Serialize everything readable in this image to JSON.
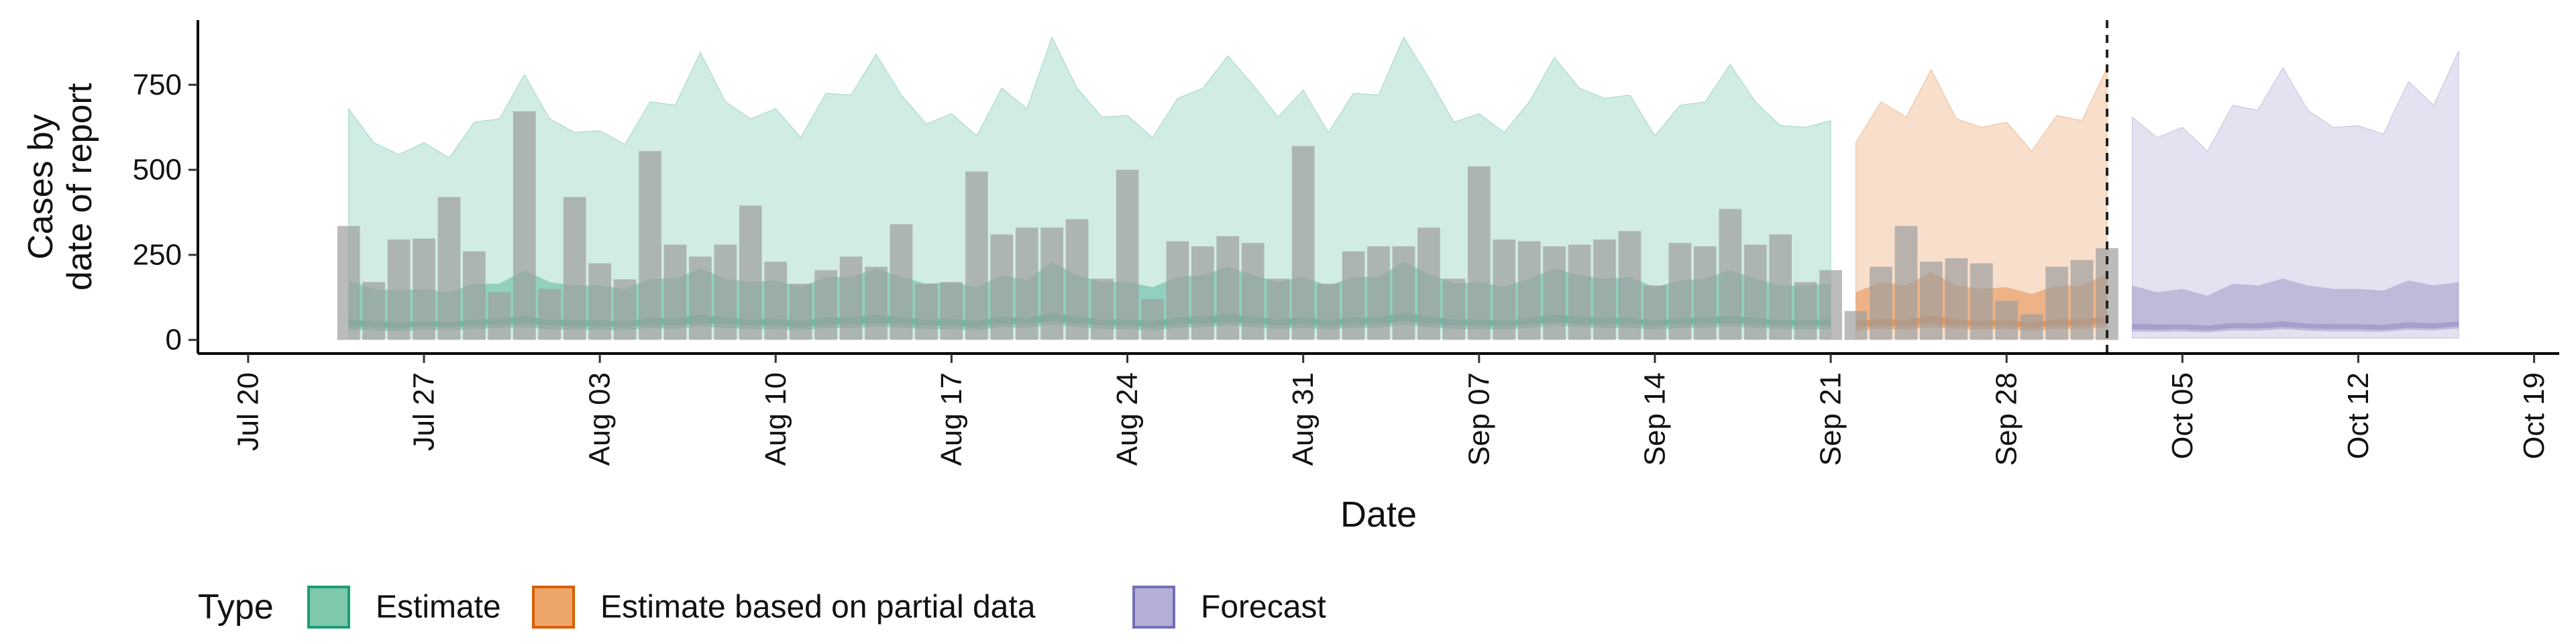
{
  "chart_data": {
    "type": "bar+area",
    "ylabel": "Cases by\ndate of report",
    "xlabel": "Date",
    "yticks": [
      0,
      250,
      500,
      750
    ],
    "ylim": [
      -40,
      940
    ],
    "xlim": [
      "2020-07-18",
      "2020-10-20"
    ],
    "xticks": [
      "2020-07-20",
      "2020-07-27",
      "2020-08-03",
      "2020-08-10",
      "2020-08-17",
      "2020-08-24",
      "2020-08-31",
      "2020-09-07",
      "2020-09-14",
      "2020-09-21",
      "2020-09-28",
      "2020-10-05",
      "2020-10-12",
      "2020-10-19"
    ],
    "xtick_labels": [
      "Jul 20",
      "Jul 27",
      "Aug 03",
      "Aug 10",
      "Aug 17",
      "Aug 24",
      "Aug 31",
      "Sep 07",
      "Sep 14",
      "Sep 21",
      "Sep 28",
      "Oct 05",
      "Oct 12",
      "Oct 19"
    ],
    "vline_date": "2020-10-02",
    "legend": {
      "title": "Type",
      "position": "bottom",
      "items": [
        {
          "label": "Estimate",
          "fill": "#7fc8ab",
          "stroke": "#1b9e77"
        },
        {
          "label": "Estimate based on partial data",
          "fill": "#eda66a",
          "stroke": "#d95f02"
        },
        {
          "label": "Forecast",
          "fill": "#b4afd6",
          "stroke": "#7570b3"
        }
      ]
    },
    "colors": {
      "Estimate": "#1b9e77",
      "Estimate based on partial data": "#d95f02",
      "Forecast": "#7570b3",
      "bars": "#9e9e9e"
    },
    "bars": {
      "dates": [
        "2020-07-24",
        "2020-07-25",
        "2020-07-26",
        "2020-07-27",
        "2020-07-28",
        "2020-07-29",
        "2020-07-30",
        "2020-07-31",
        "2020-08-01",
        "2020-08-02",
        "2020-08-03",
        "2020-08-04",
        "2020-08-05",
        "2020-08-06",
        "2020-08-07",
        "2020-08-08",
        "2020-08-09",
        "2020-08-10",
        "2020-08-11",
        "2020-08-12",
        "2020-08-13",
        "2020-08-14",
        "2020-08-15",
        "2020-08-16",
        "2020-08-17",
        "2020-08-18",
        "2020-08-19",
        "2020-08-20",
        "2020-08-21",
        "2020-08-22",
        "2020-08-23",
        "2020-08-24",
        "2020-08-25",
        "2020-08-26",
        "2020-08-27",
        "2020-08-28",
        "2020-08-29",
        "2020-08-30",
        "2020-08-31",
        "2020-09-01",
        "2020-09-02",
        "2020-09-03",
        "2020-09-04",
        "2020-09-05",
        "2020-09-06",
        "2020-09-07",
        "2020-09-08",
        "2020-09-09",
        "2020-09-10",
        "2020-09-11",
        "2020-09-12",
        "2020-09-13",
        "2020-09-14",
        "2020-09-15",
        "2020-09-16",
        "2020-09-17",
        "2020-09-18",
        "2020-09-19",
        "2020-09-20",
        "2020-09-21",
        "2020-09-22",
        "2020-09-23",
        "2020-09-24",
        "2020-09-25",
        "2020-09-26",
        "2020-09-27",
        "2020-09-28",
        "2020-09-29",
        "2020-09-30",
        "2020-10-01",
        "2020-10-02"
      ],
      "values": [
        335,
        170,
        295,
        298,
        420,
        260,
        140,
        672,
        150,
        420,
        225,
        178,
        555,
        280,
        245,
        280,
        395,
        230,
        165,
        205,
        245,
        215,
        340,
        165,
        170,
        495,
        310,
        330,
        330,
        355,
        180,
        500,
        120,
        290,
        275,
        305,
        285,
        180,
        570,
        165,
        260,
        275,
        275,
        330,
        180,
        510,
        295,
        290,
        275,
        280,
        295,
        320,
        160,
        285,
        275,
        385,
        280,
        310,
        170,
        205,
        85,
        215,
        335,
        230,
        240,
        225,
        115,
        75,
        215,
        235,
        270
      ]
    },
    "areas": [
      {
        "type": "Estimate",
        "dates": [
          "2020-07-24",
          "2020-07-25",
          "2020-07-26",
          "2020-07-27",
          "2020-07-28",
          "2020-07-29",
          "2020-07-30",
          "2020-07-31",
          "2020-08-01",
          "2020-08-02",
          "2020-08-03",
          "2020-08-04",
          "2020-08-05",
          "2020-08-06",
          "2020-08-07",
          "2020-08-08",
          "2020-08-09",
          "2020-08-10",
          "2020-08-11",
          "2020-08-12",
          "2020-08-13",
          "2020-08-14",
          "2020-08-15",
          "2020-08-16",
          "2020-08-17",
          "2020-08-18",
          "2020-08-19",
          "2020-08-20",
          "2020-08-21",
          "2020-08-22",
          "2020-08-23",
          "2020-08-24",
          "2020-08-25",
          "2020-08-26",
          "2020-08-27",
          "2020-08-28",
          "2020-08-29",
          "2020-08-30",
          "2020-08-31",
          "2020-09-01",
          "2020-09-02",
          "2020-09-03",
          "2020-09-04",
          "2020-09-05",
          "2020-09-06",
          "2020-09-07",
          "2020-09-08",
          "2020-09-09",
          "2020-09-10",
          "2020-09-11",
          "2020-09-12",
          "2020-09-13",
          "2020-09-14",
          "2020-09-15",
          "2020-09-16",
          "2020-09-17",
          "2020-09-18",
          "2020-09-19",
          "2020-09-20",
          "2020-09-21"
        ],
        "lower90": [
          5,
          5,
          5,
          5,
          5,
          5,
          5,
          5,
          5,
          5,
          5,
          5,
          5,
          5,
          5,
          5,
          5,
          5,
          5,
          5,
          5,
          5,
          5,
          5,
          5,
          5,
          5,
          5,
          5,
          5,
          5,
          5,
          5,
          5,
          5,
          5,
          5,
          5,
          5,
          5,
          5,
          5,
          5,
          5,
          5,
          5,
          5,
          5,
          5,
          5,
          5,
          5,
          5,
          5,
          5,
          5,
          5,
          5,
          5,
          5
        ],
        "upper90": [
          680,
          580,
          545,
          580,
          535,
          640,
          650,
          780,
          650,
          610,
          615,
          575,
          700,
          690,
          845,
          700,
          650,
          680,
          595,
          725,
          720,
          840,
          720,
          635,
          665,
          600,
          740,
          680,
          890,
          740,
          655,
          660,
          595,
          710,
          740,
          835,
          750,
          655,
          735,
          610,
          725,
          720,
          890,
          770,
          640,
          665,
          610,
          700,
          830,
          740,
          710,
          720,
          600,
          690,
          700,
          810,
          700,
          630,
          625,
          645
        ],
        "lower50": [
          30,
          28,
          25,
          30,
          28,
          32,
          35,
          38,
          30,
          30,
          30,
          28,
          35,
          32,
          40,
          35,
          32,
          32,
          28,
          35,
          35,
          40,
          36,
          32,
          32,
          28,
          38,
          35,
          45,
          38,
          32,
          32,
          28,
          36,
          38,
          42,
          38,
          32,
          36,
          30,
          36,
          36,
          45,
          38,
          32,
          32,
          30,
          35,
          42,
          38,
          35,
          36,
          30,
          35,
          36,
          40,
          35,
          32,
          32,
          32
        ],
        "upper50": [
          175,
          150,
          145,
          150,
          140,
          165,
          165,
          205,
          170,
          160,
          160,
          150,
          180,
          180,
          210,
          180,
          170,
          175,
          155,
          185,
          185,
          210,
          185,
          165,
          170,
          155,
          190,
          175,
          230,
          190,
          170,
          170,
          155,
          185,
          190,
          215,
          190,
          170,
          185,
          160,
          185,
          185,
          230,
          195,
          165,
          170,
          155,
          180,
          210,
          190,
          180,
          185,
          155,
          175,
          180,
          205,
          180,
          160,
          160,
          165
        ],
        "lower20": [
          40,
          38,
          35,
          40,
          38,
          42,
          45,
          48,
          42,
          40,
          40,
          38,
          45,
          42,
          50,
          45,
          42,
          42,
          38,
          45,
          45,
          50,
          46,
          42,
          42,
          38,
          48,
          45,
          55,
          48,
          42,
          42,
          38,
          46,
          48,
          52,
          48,
          42,
          46,
          40,
          46,
          46,
          55,
          48,
          42,
          42,
          40,
          45,
          52,
          48,
          45,
          46,
          40,
          45,
          46,
          50,
          45,
          42,
          42,
          42
        ],
        "upper20": [
          60,
          55,
          52,
          55,
          52,
          60,
          62,
          70,
          60,
          58,
          58,
          55,
          65,
          62,
          75,
          65,
          60,
          62,
          56,
          66,
          66,
          75,
          66,
          60,
          62,
          56,
          68,
          62,
          80,
          68,
          60,
          60,
          56,
          66,
          68,
          76,
          68,
          60,
          66,
          58,
          66,
          66,
          80,
          70,
          60,
          60,
          56,
          64,
          75,
          68,
          64,
          66,
          56,
          64,
          66,
          72,
          64,
          58,
          58,
          60
        ]
      },
      {
        "type": "Estimate based on partial data",
        "dates": [
          "2020-09-22",
          "2020-09-23",
          "2020-09-24",
          "2020-09-25",
          "2020-09-26",
          "2020-09-27",
          "2020-09-28",
          "2020-09-29",
          "2020-09-30",
          "2020-10-01",
          "2020-10-02"
        ],
        "lower90": [
          5,
          5,
          5,
          5,
          5,
          5,
          5,
          5,
          5,
          5,
          5
        ],
        "upper90": [
          580,
          700,
          655,
          795,
          650,
          625,
          640,
          555,
          660,
          645,
          800
        ],
        "lower50": [
          28,
          32,
          30,
          38,
          32,
          30,
          32,
          26,
          32,
          32,
          38
        ],
        "upper50": [
          140,
          170,
          160,
          200,
          160,
          150,
          155,
          135,
          160,
          160,
          195
        ],
        "lower20": [
          38,
          42,
          40,
          48,
          42,
          40,
          42,
          36,
          42,
          42,
          48
        ],
        "upper20": [
          55,
          62,
          58,
          72,
          60,
          56,
          58,
          52,
          60,
          60,
          70
        ]
      },
      {
        "type": "Forecast",
        "dates": [
          "2020-10-03",
          "2020-10-04",
          "2020-10-05",
          "2020-10-06",
          "2020-10-07",
          "2020-10-08",
          "2020-10-09",
          "2020-10-10",
          "2020-10-11",
          "2020-10-12",
          "2020-10-13",
          "2020-10-14",
          "2020-10-15",
          "2020-10-16"
        ],
        "lower90": [
          5,
          5,
          5,
          5,
          5,
          5,
          5,
          5,
          5,
          5,
          5,
          5,
          5,
          5
        ],
        "upper90": [
          655,
          595,
          625,
          555,
          690,
          675,
          800,
          675,
          625,
          630,
          605,
          760,
          690,
          850
        ],
        "lower50": [
          25,
          24,
          25,
          22,
          28,
          27,
          32,
          27,
          25,
          25,
          24,
          30,
          28,
          34
        ],
        "upper50": [
          160,
          140,
          150,
          130,
          165,
          160,
          180,
          160,
          150,
          150,
          145,
          175,
          160,
          170
        ],
        "lower20": [
          32,
          30,
          32,
          28,
          35,
          34,
          38,
          34,
          32,
          32,
          30,
          36,
          34,
          40
        ],
        "upper20": [
          48,
          45,
          46,
          42,
          50,
          48,
          55,
          48,
          46,
          46,
          44,
          52,
          48,
          55
        ]
      }
    ]
  }
}
